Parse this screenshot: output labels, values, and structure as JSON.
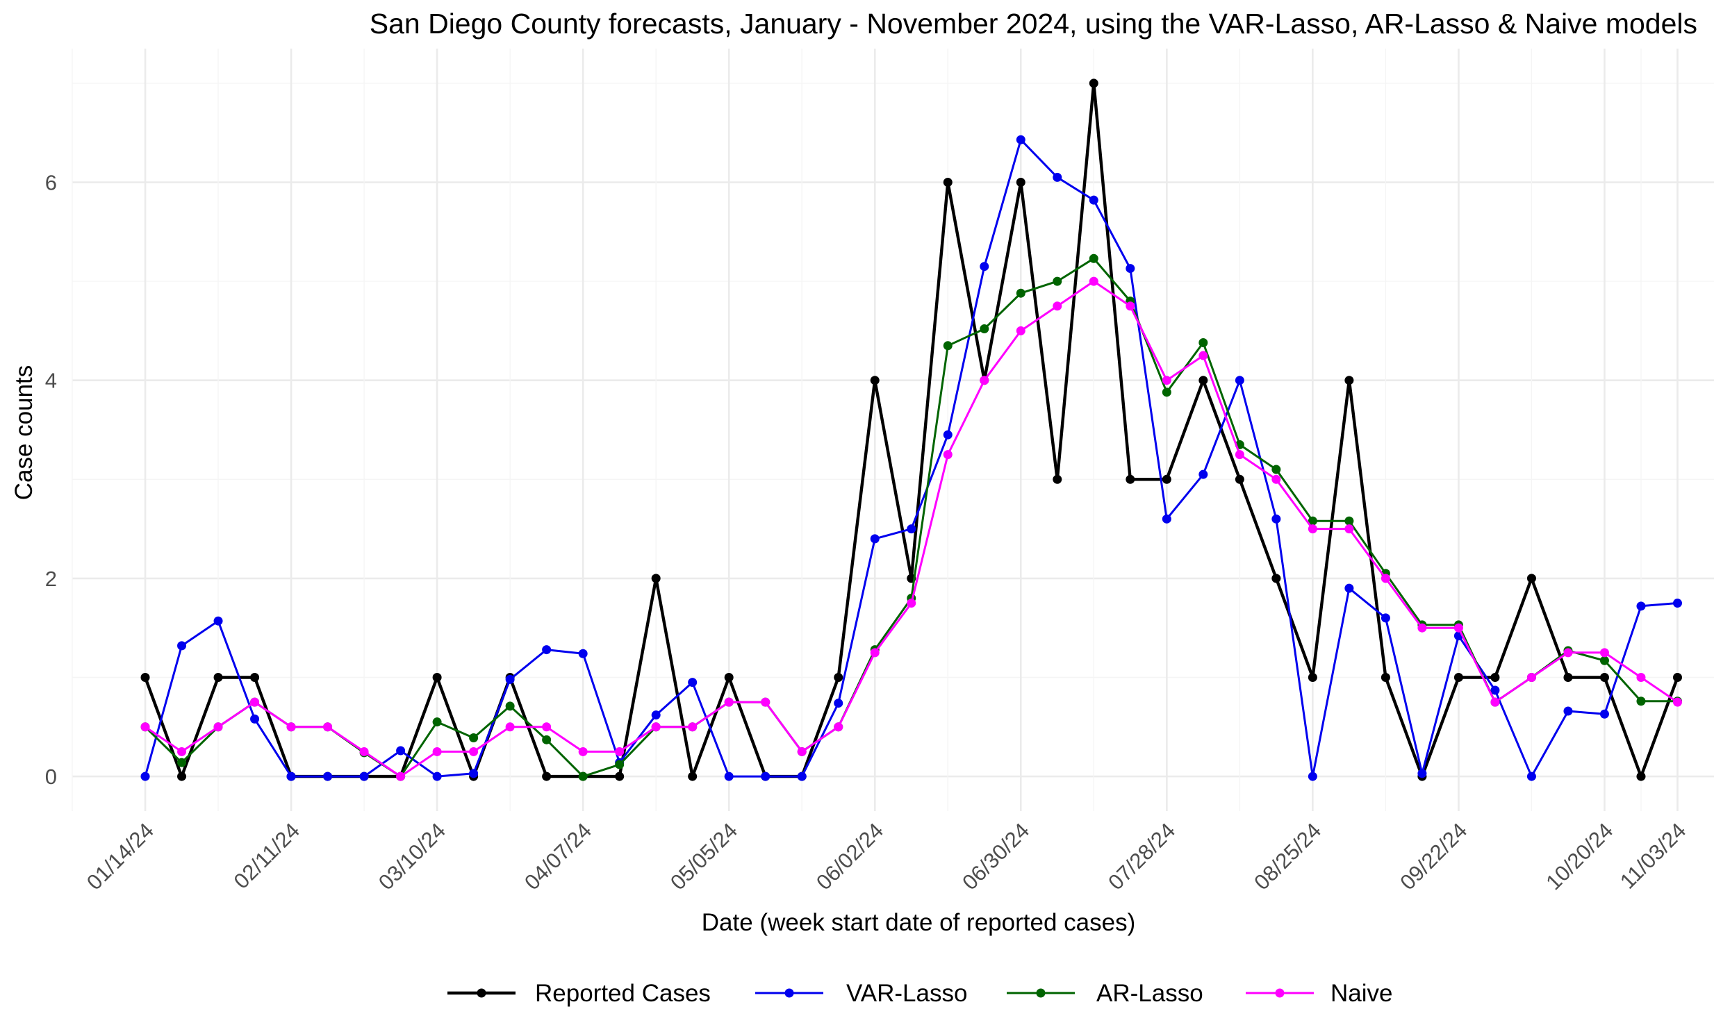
{
  "chart_data": {
    "type": "line",
    "title": "San Diego County forecasts, January - November 2024, using the VAR-Lasso, AR-Lasso & Naive models",
    "xlabel": "Date (week start date of reported cases)",
    "ylabel": "Case counts",
    "ylim": [
      -0.35,
      7.35
    ],
    "yticks": [
      0,
      2,
      4,
      6
    ],
    "xlim": [
      -2,
      43
    ],
    "x_tick_labels": [
      {
        "label": "01/14/24",
        "week": 0
      },
      {
        "label": "02/11/24",
        "week": 4
      },
      {
        "label": "03/10/24",
        "week": 8
      },
      {
        "label": "04/07/24",
        "week": 12
      },
      {
        "label": "05/05/24",
        "week": 16
      },
      {
        "label": "06/02/24",
        "week": 20
      },
      {
        "label": "06/30/24",
        "week": 24
      },
      {
        "label": "07/28/24",
        "week": 28
      },
      {
        "label": "08/25/24",
        "week": 32
      },
      {
        "label": "09/22/24",
        "week": 36
      },
      {
        "label": "10/20/24",
        "week": 40
      },
      {
        "label": "11/03/24",
        "week": 42
      }
    ],
    "x_weeks": [
      0,
      1,
      2,
      3,
      4,
      5,
      6,
      7,
      8,
      9,
      10,
      11,
      12,
      13,
      14,
      15,
      16,
      17,
      18,
      19,
      20,
      21,
      22,
      23,
      24,
      25,
      26,
      27,
      28,
      29,
      30,
      31,
      32,
      33,
      34,
      35,
      36,
      37,
      38,
      39,
      40,
      41,
      42
    ],
    "series": [
      {
        "name": "Reported Cases",
        "color": "#000000",
        "values": [
          1,
          0,
          1,
          1,
          0,
          0,
          0,
          0,
          1,
          0,
          1,
          0,
          0,
          0,
          2,
          0,
          1,
          0,
          0,
          1,
          4,
          2,
          6,
          4,
          6,
          3,
          7,
          3,
          3,
          4,
          3,
          2,
          1,
          4,
          1,
          0,
          1,
          1,
          2,
          1,
          1,
          0,
          1
        ]
      },
      {
        "name": "VAR-Lasso",
        "color": "#0000ee",
        "values": [
          0,
          1.32,
          1.57,
          0.58,
          0,
          0,
          0,
          0.26,
          0,
          0.03,
          0.98,
          1.28,
          1.24,
          0.14,
          0.62,
          0.95,
          0,
          0,
          0,
          0.74,
          2.4,
          2.5,
          3.45,
          5.15,
          6.43,
          6.05,
          5.82,
          5.13,
          2.6,
          3.05,
          4.0,
          2.6,
          0,
          1.9,
          1.6,
          0.03,
          1.42,
          0.87,
          0,
          0.66,
          0.63,
          1.72,
          1.75
        ]
      },
      {
        "name": "AR-Lasso",
        "color": "#006400",
        "values": [
          0.5,
          0.14,
          0.5,
          0.75,
          0.5,
          0.5,
          0.24,
          0,
          0.55,
          0.39,
          0.71,
          0.37,
          0,
          0.12,
          0.5,
          0.5,
          0.75,
          0.75,
          0.25,
          0.5,
          1.28,
          1.8,
          4.35,
          4.52,
          4.88,
          5.0,
          5.23,
          4.8,
          3.88,
          4.38,
          3.35,
          3.1,
          2.58,
          2.58,
          2.05,
          1.53,
          1.53,
          0.75,
          1.0,
          1.27,
          1.17,
          0.76,
          0.76
        ]
      },
      {
        "name": "Naive",
        "color": "#ff00ff",
        "values": [
          0.5,
          0.25,
          0.5,
          0.75,
          0.5,
          0.5,
          0.25,
          0,
          0.25,
          0.25,
          0.5,
          0.5,
          0.25,
          0.25,
          0.5,
          0.5,
          0.75,
          0.75,
          0.25,
          0.5,
          1.25,
          1.75,
          3.25,
          4.0,
          4.5,
          4.75,
          5.0,
          4.75,
          4.0,
          4.25,
          3.25,
          3.0,
          2.5,
          2.5,
          2.0,
          1.5,
          1.5,
          0.75,
          1.0,
          1.25,
          1.25,
          1.0,
          0.75
        ]
      }
    ],
    "legend": {
      "position": "bottom",
      "entries": [
        "Reported Cases",
        "VAR-Lasso",
        "AR-Lasso",
        "Naive"
      ]
    }
  }
}
